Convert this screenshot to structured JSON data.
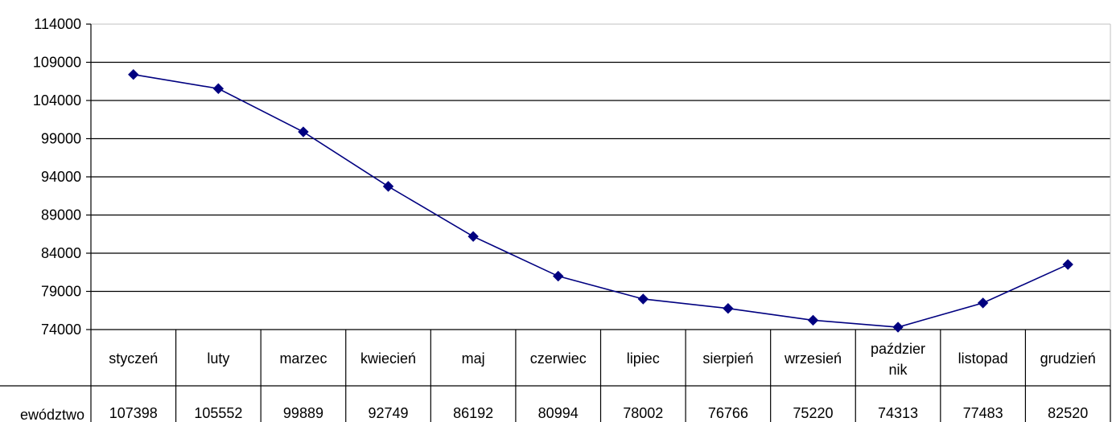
{
  "chart_data": {
    "type": "line",
    "categories": [
      "styczeń",
      "luty",
      "marzec",
      "kwiecień",
      "maj",
      "czerwiec",
      "lipiec",
      "sierpień",
      "wrzesień",
      "październik",
      "listopad",
      "grudzień"
    ],
    "category_display": [
      [
        "styczeń"
      ],
      [
        "luty"
      ],
      [
        "marzec"
      ],
      [
        "kwiecień"
      ],
      [
        "maj"
      ],
      [
        "czerwiec"
      ],
      [
        "lipiec"
      ],
      [
        "sierpień"
      ],
      [
        "wrzesień"
      ],
      [
        "paździer",
        "nik"
      ],
      [
        "listopad"
      ],
      [
        "grudzień"
      ]
    ],
    "series": [
      {
        "name": "ewództwo",
        "values": [
          107398,
          105552,
          99889,
          92749,
          86192,
          80994,
          78002,
          76766,
          75220,
          74313,
          77483,
          82520
        ]
      }
    ],
    "yticks": [
      "114000",
      "109000",
      "104000",
      "99000",
      "94000",
      "89000",
      "84000",
      "79000",
      "74000"
    ],
    "ylim": [
      74000,
      114000
    ],
    "grid": true,
    "data_table": true,
    "line_color": "#000080",
    "marker": "diamond",
    "title": "",
    "xlabel": "",
    "ylabel": ""
  }
}
